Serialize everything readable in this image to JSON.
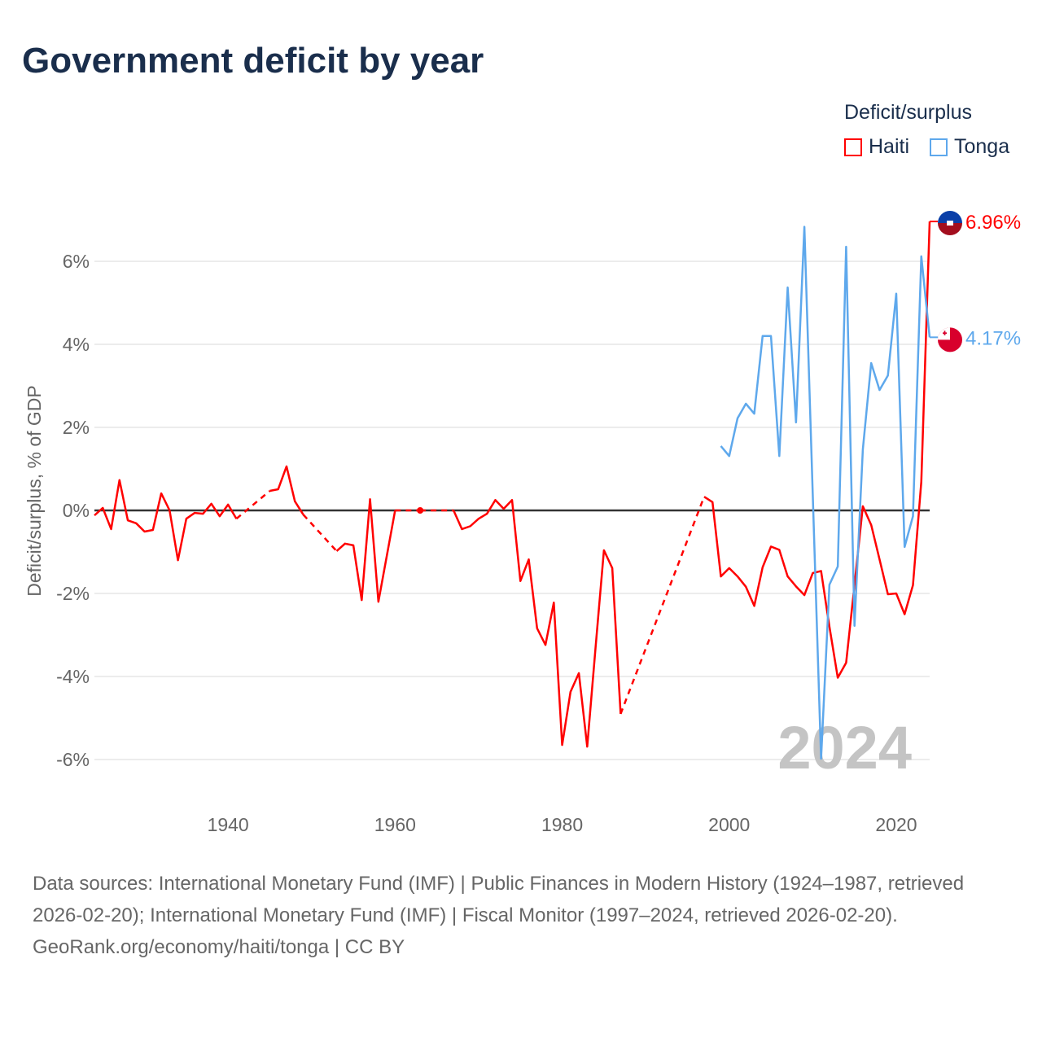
{
  "title": "Government deficit by year",
  "legend": {
    "title": "Deficit/surplus",
    "items": [
      {
        "name": "Haiti",
        "color": "#ff0000"
      },
      {
        "name": "Tonga",
        "color": "#5ea8ec"
      }
    ]
  },
  "footer": {
    "sources": "Data sources: International Monetary Fund (IMF) | Public Finances in Modern History (1924–1987, retrieved 2026-02-20); International Monetary Fund (IMF) | Fiscal Monitor (1997–2024, retrieved 2026-02-20).",
    "credit": "GeoRank.org/economy/haiti/tonga | CC BY"
  },
  "chart_data": {
    "type": "line",
    "title": "Government deficit by year",
    "xlabel": "",
    "ylabel": "Deficit/surplus, % of GDP",
    "xlim": [
      1924,
      2024
    ],
    "ylim": [
      -7,
      7.5
    ],
    "xticks": [
      1940,
      1960,
      1980,
      2000,
      2020
    ],
    "yticks": [
      -6,
      -4,
      -2,
      0,
      2,
      4,
      6
    ],
    "ytick_labels": [
      "-6%",
      "-4%",
      "-2%",
      "0%",
      "2%",
      "4%",
      "6%"
    ],
    "year_watermark": "2024",
    "grid": true,
    "legend_position": "top-right",
    "series": [
      {
        "name": "Haiti",
        "color": "#ff0000",
        "end_label": "6.96%",
        "start_year": 1924,
        "values": [
          -0.12,
          0.06,
          -0.45,
          0.73,
          -0.24,
          -0.31,
          -0.51,
          -0.47,
          0.41,
          0,
          -1.2,
          -0.2,
          -0.06,
          -0.08,
          0.16,
          -0.14,
          0.14,
          -0.2,
          null,
          null,
          null,
          0.47,
          0.51,
          1.06,
          0.22,
          -0.1,
          null,
          null,
          null,
          -0.98,
          -0.8,
          -0.84,
          -2.16,
          0.27,
          -2.2,
          -1.1,
          0,
          null,
          null,
          0,
          null,
          null,
          null,
          0,
          -0.45,
          -0.38,
          -0.2,
          -0.08,
          0.25,
          0.04,
          0.25,
          -1.7,
          -1.18,
          -2.84,
          -3.24,
          -2.22,
          -5.65,
          -4.37,
          -3.92,
          -5.69,
          -3.3,
          -0.96,
          -1.39,
          -4.9,
          null,
          null,
          null,
          null,
          null,
          null,
          null,
          null,
          null,
          0.33,
          0.2,
          -1.59,
          -1.39,
          -1.59,
          -1.84,
          -2.3,
          -1.37,
          -0.87,
          -0.95,
          -1.59,
          -1.83,
          -2.04,
          -1.51,
          -1.46,
          -2.8,
          -4.03,
          -3.67,
          -1.8,
          0.1,
          -0.35,
          -1.18,
          -2.02,
          -2.0,
          -2.5,
          -1.8,
          0.69,
          6.96
        ]
      },
      {
        "name": "Tonga",
        "color": "#5ea8ec",
        "end_label": "4.17%",
        "start_year": 1999,
        "values": [
          1.55,
          1.31,
          2.22,
          2.57,
          2.33,
          4.2,
          4.2,
          1.31,
          5.37,
          2.12,
          6.83,
          0.4,
          -5.98,
          -1.79,
          -1.35,
          6.35,
          -2.78,
          1.47,
          3.55,
          2.9,
          3.25,
          5.22,
          -0.88,
          -0.14,
          6.12,
          4.17
        ]
      }
    ]
  }
}
